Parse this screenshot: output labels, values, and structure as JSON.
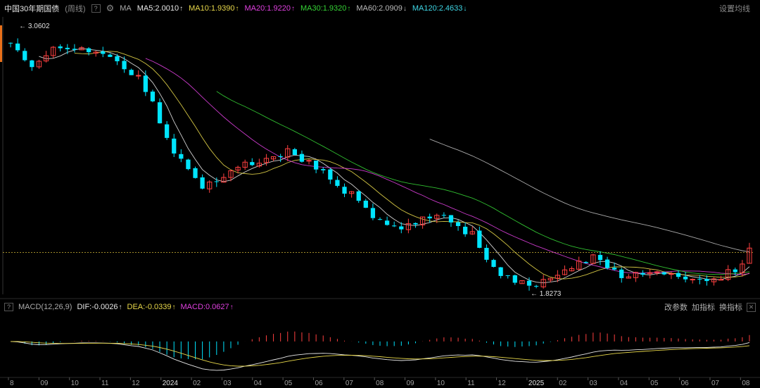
{
  "header": {
    "title": "中国30年期国债",
    "period": "(周线)",
    "help": "?",
    "ma_label": "MA",
    "ma5": "MA5:2.0010",
    "ma10": "MA10:1.9390",
    "ma20": "MA20:1.9220",
    "ma30": "MA30:1.9320",
    "ma60": "MA60:2.0909",
    "ma120": "MA120:2.4633",
    "arrow_up": "↑",
    "arrow_down": "↓",
    "settings": "设置均线"
  },
  "macd_header": {
    "toggle": "?",
    "label": "MACD(12,26,9)",
    "dif": "DIF:-0.0026",
    "dea": "DEA:-0.0339",
    "macd": "MACD:0.0627",
    "change_params": "改参数",
    "add_indicator": "加指标",
    "swap_indicator": "换指标",
    "close": "✕"
  },
  "colors": {
    "up": "#ff4040",
    "down": "#00e5ff",
    "ma5": "#e8e8e8",
    "ma10": "#e8d84a",
    "ma20": "#e040e0",
    "ma30": "#35d335",
    "ma60": "#bbbbbb",
    "dif": "#e8e8e8",
    "dea": "#e8d84a"
  },
  "chart_data": {
    "type": "candlestick",
    "period": "weekly",
    "price_range": [
      1.8,
      3.11
    ],
    "current_price_line": 2.0,
    "annotations": [
      {
        "label": "3.0602",
        "value": 3.0602,
        "type": "high"
      },
      {
        "label": "1.8273",
        "value": 1.8273,
        "type": "low"
      }
    ],
    "x_ticks": [
      "8",
      "09",
      "10",
      "11",
      "12",
      "2024",
      "02",
      "03",
      "04",
      "05",
      "06",
      "07",
      "08",
      "09",
      "10",
      "11",
      "12",
      "2025",
      "02",
      "03",
      "04",
      "05",
      "06",
      "07",
      "08"
    ],
    "segments": [
      {
        "n": 4,
        "from": 3.02,
        "to": 2.86,
        "noise": 0.025
      },
      {
        "n": 3,
        "from": 2.86,
        "to": 2.98,
        "noise": 0.012
      },
      {
        "n": 4,
        "from": 2.98,
        "to": 2.97,
        "noise": 0.01
      },
      {
        "n": 4,
        "from": 2.97,
        "to": 2.94,
        "noise": 0.008
      },
      {
        "n": 4,
        "from": 2.94,
        "to": 2.84,
        "noise": 0.02
      },
      {
        "n": 5,
        "from": 2.84,
        "to": 2.5,
        "noise": 0.03
      },
      {
        "n": 4,
        "from": 2.5,
        "to": 2.3,
        "noise": 0.03
      },
      {
        "n": 6,
        "from": 2.3,
        "to": 2.42,
        "noise": 0.03
      },
      {
        "n": 6,
        "from": 2.42,
        "to": 2.48,
        "noise": 0.015
      },
      {
        "n": 6,
        "from": 2.48,
        "to": 2.36,
        "noise": 0.02
      },
      {
        "n": 6,
        "from": 2.36,
        "to": 2.18,
        "noise": 0.02
      },
      {
        "n": 4,
        "from": 2.18,
        "to": 2.1,
        "noise": 0.02
      },
      {
        "n": 5,
        "from": 2.1,
        "to": 2.19,
        "noise": 0.02
      },
      {
        "n": 5,
        "from": 2.19,
        "to": 2.08,
        "noise": 0.02
      },
      {
        "n": 4,
        "from": 2.08,
        "to": 1.88,
        "noise": 0.02
      },
      {
        "n": 5,
        "from": 1.88,
        "to": 1.85,
        "noise": 0.02
      },
      {
        "n": 4,
        "from": 1.85,
        "to": 1.91,
        "noise": 0.015
      },
      {
        "n": 4,
        "from": 1.91,
        "to": 1.97,
        "noise": 0.02
      },
      {
        "n": 4,
        "from": 1.97,
        "to": 1.89,
        "noise": 0.02
      },
      {
        "n": 6,
        "from": 1.89,
        "to": 1.9,
        "noise": 0.012
      },
      {
        "n": 6,
        "from": 1.9,
        "to": 1.86,
        "noise": 0.01
      },
      {
        "n": 4,
        "from": 1.86,
        "to": 1.92,
        "noise": 0.02
      },
      {
        "n": 2,
        "from": 1.92,
        "to": 2.02,
        "noise": 0.03
      }
    ],
    "macd": {
      "dif": -0.0026,
      "dea": -0.0339,
      "macd": 0.0627
    }
  }
}
